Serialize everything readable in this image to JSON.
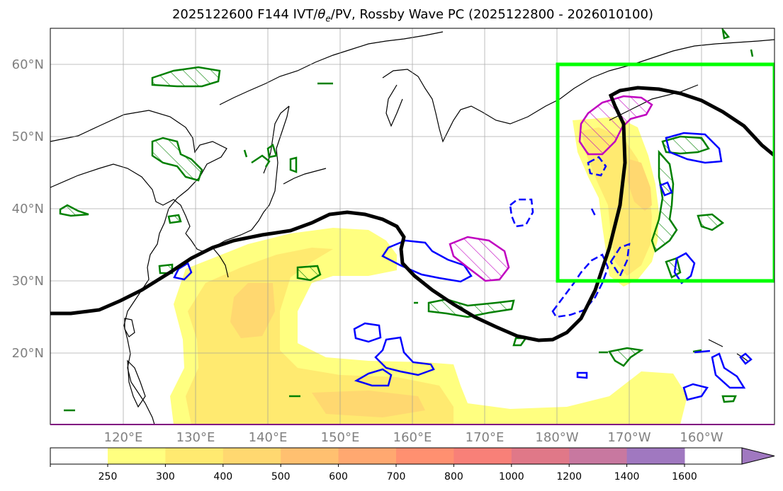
{
  "title": {
    "prefix": "2025122600 F144 IVT/",
    "theta": "θ",
    "theta_sub": "e",
    "suffix": "/PV, Rossby Wave PC (2025122800 - 2026010100)"
  },
  "lat_labels": [
    "60°N",
    "50°N",
    "40°N",
    "30°N",
    "20°N"
  ],
  "lon_labels": [
    "120°E",
    "130°E",
    "140°E",
    "150°E",
    "160°E",
    "170°E",
    "180°W",
    "170°W",
    "160°W"
  ],
  "colorbar": {
    "ticks": [
      "250",
      "300",
      "400",
      "500",
      "600",
      "700",
      "800",
      "1000",
      "1200",
      "1400",
      "1600"
    ],
    "colors": [
      "#ffff80",
      "#ffea70",
      "#ffd870",
      "#ffc070",
      "#ffa870",
      "#ff9070",
      "#f88078",
      "#e07888",
      "#c878a0",
      "#a078c0"
    ]
  },
  "colors": {
    "box": "#00ff00",
    "trough_line": "#000000",
    "pv_contour": "#008000",
    "theta_neg": "#0000ff",
    "theta_pos": "#c000c0",
    "ivt_low": "#ffff80",
    "ivt_mid": "#ffea70",
    "ivt_high": "#ffd870"
  },
  "icons": [
    "map-frame",
    "coastline",
    "gridlines",
    "colorbar-arrow"
  ]
}
